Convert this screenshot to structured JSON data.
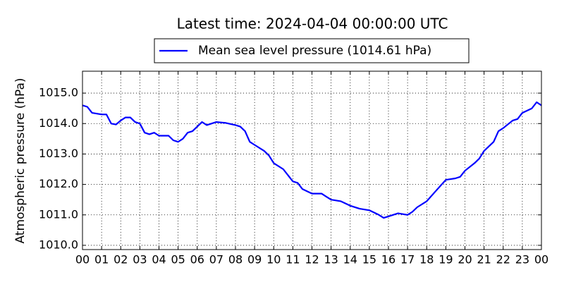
{
  "chart_data": {
    "type": "line",
    "title": "Latest time: 2024-04-04 00:00:00 UTC",
    "ylabel": "Atmospheric pressure (hPa)",
    "x": [
      0,
      0.25,
      0.5,
      1,
      1.25,
      1.5,
      1.75,
      2,
      2.25,
      2.5,
      2.75,
      3,
      3.25,
      3.5,
      3.75,
      4,
      4.5,
      4.75,
      5,
      5.25,
      5.5,
      5.75,
      6,
      6.25,
      6.5,
      7,
      7.5,
      8,
      8.25,
      8.5,
      8.75,
      9,
      9.5,
      9.75,
      10,
      10.5,
      10.75,
      11,
      11.25,
      11.5,
      12,
      12.5,
      12.75,
      13,
      13.5,
      14,
      14.5,
      15,
      15.5,
      15.75,
      16,
      16.5,
      17,
      17.25,
      17.5,
      18,
      18.5,
      19,
      19.5,
      19.75,
      20,
      20.5,
      20.75,
      21,
      21.5,
      21.75,
      22,
      22.5,
      22.75,
      23,
      23.5,
      23.75,
      24
    ],
    "series": [
      {
        "name": "Mean sea level pressure (1014.61 hPa)",
        "color": "#0000ff",
        "values": [
          1014.6,
          1014.55,
          1014.35,
          1014.3,
          1014.3,
          1014.0,
          1013.97,
          1014.1,
          1014.2,
          1014.2,
          1014.05,
          1014.0,
          1013.7,
          1013.65,
          1013.7,
          1013.6,
          1013.6,
          1013.45,
          1013.4,
          1013.5,
          1013.7,
          1013.75,
          1013.9,
          1014.05,
          1013.95,
          1014.05,
          1014.02,
          1013.95,
          1013.9,
          1013.75,
          1013.4,
          1013.3,
          1013.1,
          1012.95,
          1012.7,
          1012.5,
          1012.3,
          1012.1,
          1012.05,
          1011.85,
          1011.7,
          1011.7,
          1011.6,
          1011.5,
          1011.45,
          1011.3,
          1011.2,
          1011.15,
          1011.0,
          1010.9,
          1010.95,
          1011.05,
          1011.0,
          1011.1,
          1011.25,
          1011.45,
          1011.8,
          1012.15,
          1012.2,
          1012.25,
          1012.45,
          1012.7,
          1012.85,
          1013.1,
          1013.4,
          1013.75,
          1013.85,
          1014.1,
          1014.15,
          1014.35,
          1014.5,
          1014.7,
          1014.6
        ]
      }
    ],
    "xlim": [
      0,
      24
    ],
    "xticks": [
      {
        "value": 0,
        "label": "00"
      },
      {
        "value": 1,
        "label": "01"
      },
      {
        "value": 2,
        "label": "02"
      },
      {
        "value": 3,
        "label": "03"
      },
      {
        "value": 4,
        "label": "04"
      },
      {
        "value": 5,
        "label": "05"
      },
      {
        "value": 6,
        "label": "06"
      },
      {
        "value": 7,
        "label": "07"
      },
      {
        "value": 8,
        "label": "08"
      },
      {
        "value": 9,
        "label": "09"
      },
      {
        "value": 10,
        "label": "10"
      },
      {
        "value": 11,
        "label": "11"
      },
      {
        "value": 12,
        "label": "12"
      },
      {
        "value": 13,
        "label": "13"
      },
      {
        "value": 14,
        "label": "14"
      },
      {
        "value": 15,
        "label": "15"
      },
      {
        "value": 16,
        "label": "16"
      },
      {
        "value": 17,
        "label": "17"
      },
      {
        "value": 18,
        "label": "18"
      },
      {
        "value": 19,
        "label": "19"
      },
      {
        "value": 20,
        "label": "20"
      },
      {
        "value": 21,
        "label": "21"
      },
      {
        "value": 22,
        "label": "22"
      },
      {
        "value": 23,
        "label": "23"
      },
      {
        "value": 24,
        "label": "00"
      }
    ],
    "ylim": [
      1009.86,
      1015.72
    ],
    "yticks": [
      {
        "value": 1010,
        "label": "1010.0"
      },
      {
        "value": 1011,
        "label": "1011.0"
      },
      {
        "value": 1012,
        "label": "1012.0"
      },
      {
        "value": 1013,
        "label": "1013.0"
      },
      {
        "value": 1014,
        "label": "1014.0"
      },
      {
        "value": 1015,
        "label": "1015.0"
      }
    ],
    "grid": true,
    "legend": "top"
  }
}
